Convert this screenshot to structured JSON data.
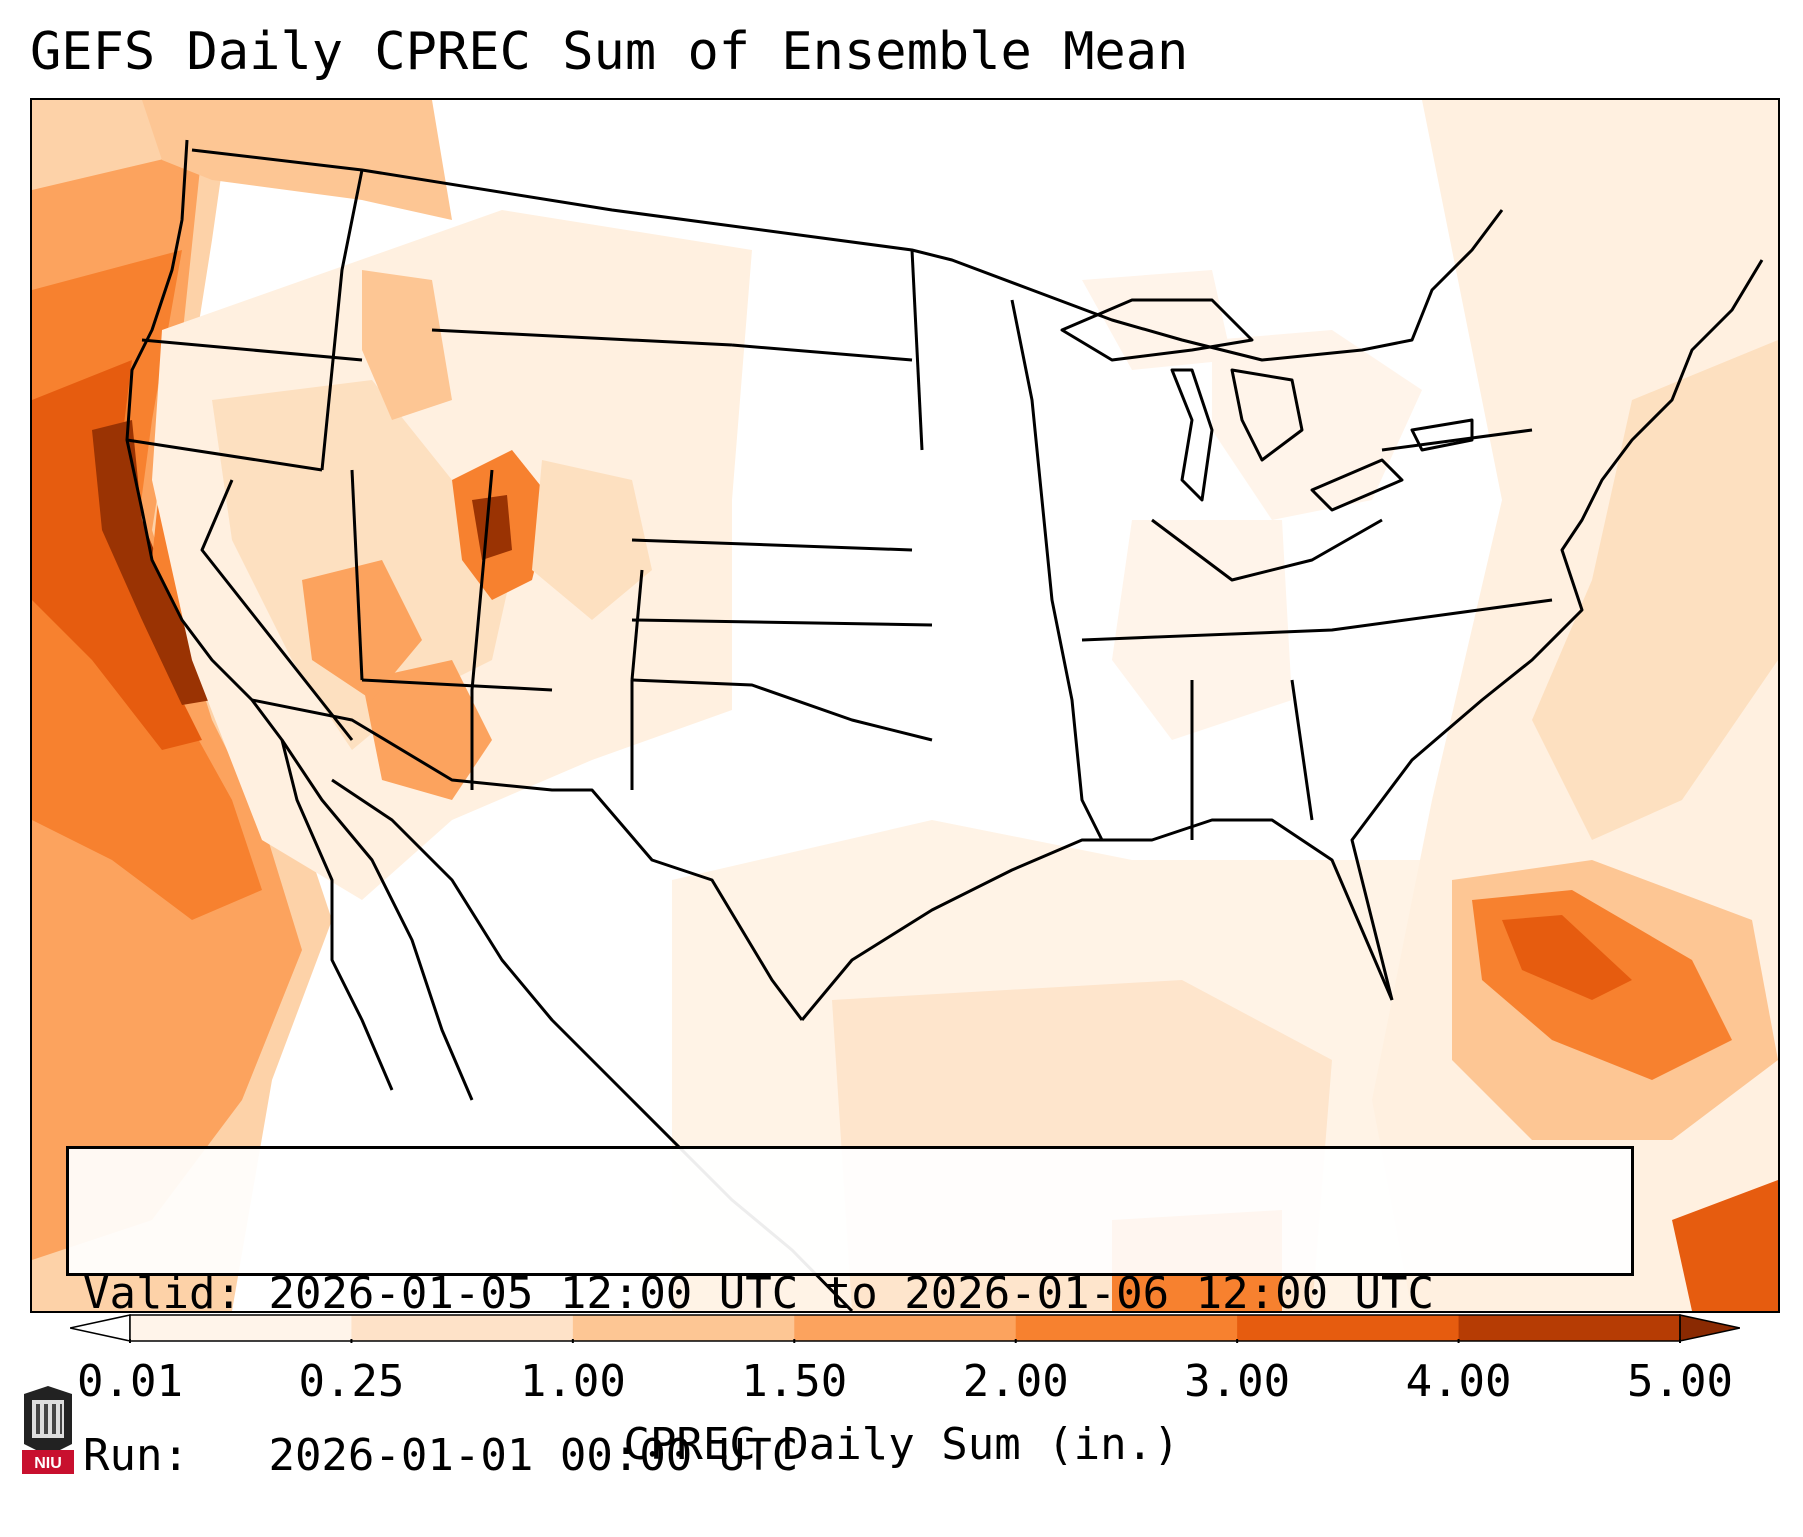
{
  "title": "GEFS Daily CPREC Sum of Ensemble Mean",
  "info": {
    "valid_label": "Valid:",
    "valid_value": "2026-01-05 12:00 UTC to 2026-01-06 12:00 UTC",
    "run_label": "Run:",
    "run_value": "2026-01-01 00:00 UTC"
  },
  "colorbar": {
    "label": "CPREC Daily Sum (in.)",
    "ticks": [
      "0.01",
      "0.25",
      "1.00",
      "1.50",
      "2.00",
      "3.00",
      "4.00",
      "5.00"
    ],
    "colors": [
      "#fff4ea",
      "#fee2c8",
      "#fdc694",
      "#fca35e",
      "#f7812f",
      "#e65c0f",
      "#b63c04"
    ],
    "under_color": "#ffffff",
    "over_color": "#8a2a02",
    "extend": "both"
  },
  "logo": {
    "text": "NIU",
    "color": "#c8102e"
  }
}
